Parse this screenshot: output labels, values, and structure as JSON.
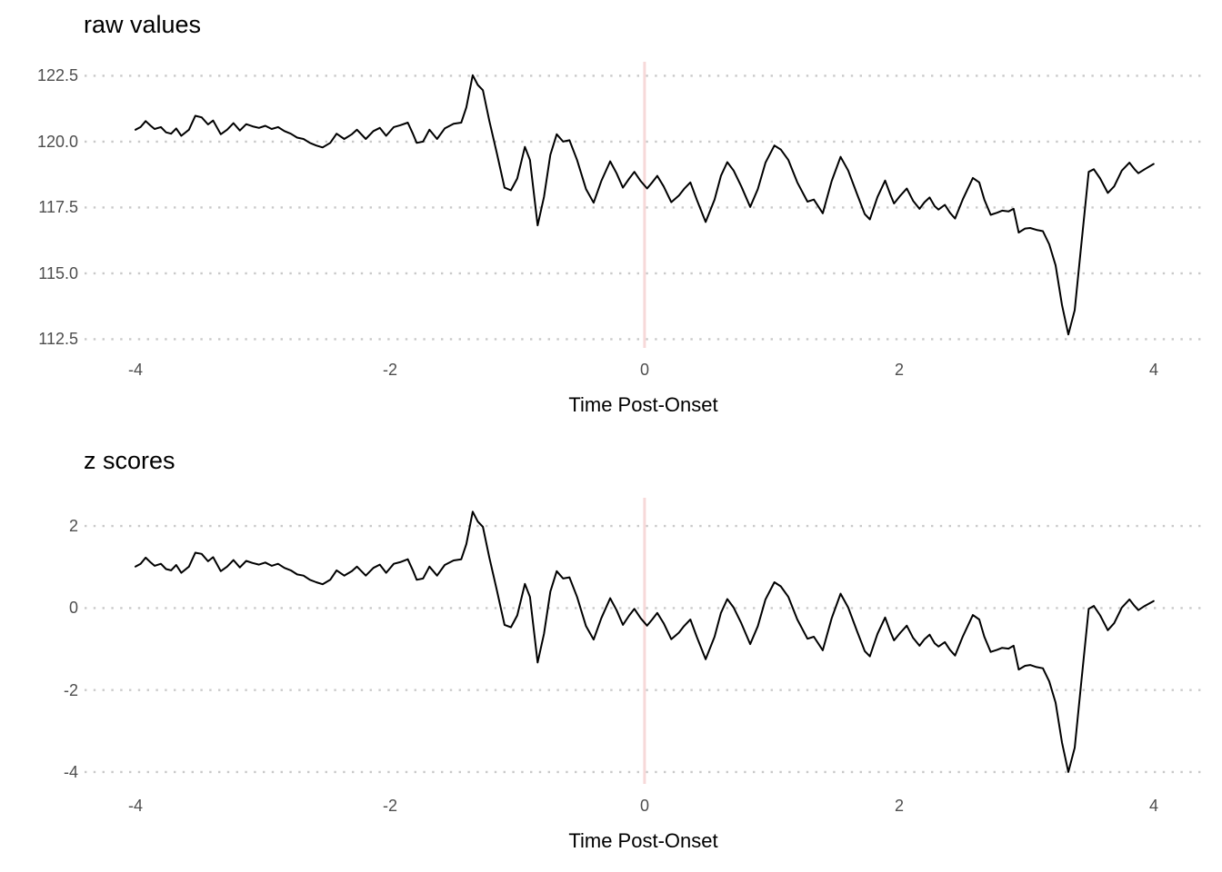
{
  "style": {
    "background": "#ffffff",
    "line_color": "#000000",
    "grid_color": "#c9c9c9",
    "vline_color": "#f7d9d9",
    "tick_label_color": "#4d4d4d",
    "text_color": "#000000"
  },
  "chart_data": [
    {
      "type": "line",
      "title": "raw values",
      "xlabel": "Time Post-Onset",
      "legend": "none",
      "grid": "dotted horizontal gridlines at y ticks",
      "vline_x": 0,
      "x_ticks": [
        -4,
        -2,
        0,
        2,
        4
      ],
      "x_tick_labels": [
        "-4",
        "-2",
        "0",
        "2",
        "4"
      ],
      "y_ticks": [
        122.5,
        120.0,
        117.5,
        115.0,
        112.5
      ],
      "y_tick_labels": [
        "122.5",
        "120.0",
        "117.5",
        "115.0",
        "112.5"
      ],
      "xlim": [
        -4.4,
        4.38
      ],
      "ylim": [
        112.17,
        123.03
      ],
      "x": [
        -4.0,
        -3.96,
        -3.92,
        -3.88,
        -3.85,
        -3.8,
        -3.76,
        -3.72,
        -3.68,
        -3.64,
        -3.58,
        -3.53,
        -3.48,
        -3.43,
        -3.39,
        -3.33,
        -3.28,
        -3.23,
        -3.18,
        -3.13,
        -3.08,
        -3.03,
        -2.98,
        -2.93,
        -2.88,
        -2.83,
        -2.78,
        -2.73,
        -2.68,
        -2.63,
        -2.58,
        -2.53,
        -2.47,
        -2.42,
        -2.36,
        -2.3,
        -2.26,
        -2.19,
        -2.13,
        -2.08,
        -2.03,
        -1.97,
        -1.92,
        -1.86,
        -1.82,
        -1.79,
        -1.74,
        -1.69,
        -1.63,
        -1.57,
        -1.5,
        -1.44,
        -1.4,
        -1.35,
        -1.31,
        -1.27,
        -1.22,
        -1.16,
        -1.1,
        -1.05,
        -1.0,
        -0.94,
        -0.9,
        -0.84,
        -0.79,
        -0.74,
        -0.69,
        -0.64,
        -0.59,
        -0.53,
        -0.46,
        -0.4,
        -0.34,
        -0.27,
        -0.22,
        -0.17,
        -0.12,
        -0.08,
        -0.03,
        0.02,
        0.06,
        0.1,
        0.15,
        0.21,
        0.27,
        0.31,
        0.36,
        0.41,
        0.48,
        0.55,
        0.6,
        0.65,
        0.7,
        0.76,
        0.83,
        0.89,
        0.95,
        1.02,
        1.07,
        1.13,
        1.2,
        1.28,
        1.33,
        1.4,
        1.47,
        1.54,
        1.6,
        1.67,
        1.73,
        1.77,
        1.83,
        1.89,
        1.93,
        1.96,
        2.01,
        2.06,
        2.11,
        2.16,
        2.2,
        2.24,
        2.28,
        2.31,
        2.36,
        2.4,
        2.44,
        2.5,
        2.58,
        2.63,
        2.67,
        2.72,
        2.77,
        2.81,
        2.86,
        2.9,
        2.94,
        2.99,
        3.03,
        3.08,
        3.13,
        3.18,
        3.23,
        3.28,
        3.33,
        3.38,
        3.43,
        3.49,
        3.53,
        3.58,
        3.64,
        3.69,
        3.75,
        3.81,
        3.85,
        3.88,
        3.93,
        4.0
      ],
      "values": [
        120.45,
        120.55,
        120.78,
        120.6,
        120.48,
        120.55,
        120.35,
        120.3,
        120.5,
        120.22,
        120.45,
        120.98,
        120.92,
        120.65,
        120.8,
        120.28,
        120.45,
        120.7,
        120.42,
        120.66,
        120.58,
        120.52,
        120.6,
        120.48,
        120.55,
        120.4,
        120.3,
        120.15,
        120.1,
        119.95,
        119.85,
        119.78,
        119.95,
        120.3,
        120.1,
        120.28,
        120.45,
        120.1,
        120.4,
        120.52,
        120.22,
        120.55,
        120.62,
        120.72,
        120.3,
        119.95,
        120.0,
        120.45,
        120.1,
        120.5,
        120.68,
        120.72,
        121.3,
        122.52,
        122.15,
        121.95,
        120.8,
        119.55,
        118.25,
        118.15,
        118.6,
        119.8,
        119.3,
        116.82,
        117.9,
        119.5,
        120.28,
        120.0,
        120.05,
        119.3,
        118.2,
        117.68,
        118.5,
        119.25,
        118.8,
        118.25,
        118.6,
        118.85,
        118.5,
        118.22,
        118.45,
        118.7,
        118.3,
        117.7,
        117.95,
        118.2,
        118.45,
        117.8,
        116.95,
        117.8,
        118.7,
        119.22,
        118.9,
        118.3,
        117.52,
        118.2,
        119.2,
        119.85,
        119.7,
        119.3,
        118.45,
        117.72,
        117.8,
        117.28,
        118.5,
        119.42,
        118.9,
        118.0,
        117.25,
        117.05,
        117.9,
        118.52,
        118.0,
        117.65,
        117.95,
        118.22,
        117.75,
        117.45,
        117.7,
        117.88,
        117.55,
        117.42,
        117.6,
        117.3,
        117.08,
        117.8,
        118.62,
        118.45,
        117.8,
        117.22,
        117.3,
        117.38,
        117.35,
        117.45,
        116.55,
        116.7,
        116.72,
        116.65,
        116.6,
        116.1,
        115.3,
        113.8,
        112.68,
        113.6,
        116.0,
        118.85,
        118.95,
        118.6,
        118.05,
        118.3,
        118.9,
        119.2,
        118.95,
        118.8,
        118.95,
        119.15
      ]
    },
    {
      "type": "line",
      "title": "z scores",
      "xlabel": "Time Post-Onset",
      "legend": "none",
      "grid": "dotted horizontal gridlines at y ticks",
      "vline_x": 0,
      "x_ticks": [
        -4,
        -2,
        0,
        2,
        4
      ],
      "x_tick_labels": [
        "-4",
        "-2",
        "0",
        "2",
        "4"
      ],
      "y_ticks": [
        2,
        0,
        -2,
        -4
      ],
      "y_tick_labels": [
        "2",
        "0",
        "-2",
        "-4"
      ],
      "xlim": [
        -4.4,
        4.38
      ],
      "ylim": [
        -4.29,
        2.69
      ],
      "x": [
        -4.0,
        -3.96,
        -3.92,
        -3.88,
        -3.85,
        -3.8,
        -3.76,
        -3.72,
        -3.68,
        -3.64,
        -3.58,
        -3.53,
        -3.48,
        -3.43,
        -3.39,
        -3.33,
        -3.28,
        -3.23,
        -3.18,
        -3.13,
        -3.08,
        -3.03,
        -2.98,
        -2.93,
        -2.88,
        -2.83,
        -2.78,
        -2.73,
        -2.68,
        -2.63,
        -2.58,
        -2.53,
        -2.47,
        -2.42,
        -2.36,
        -2.3,
        -2.26,
        -2.19,
        -2.13,
        -2.08,
        -2.03,
        -1.97,
        -1.92,
        -1.86,
        -1.82,
        -1.79,
        -1.74,
        -1.69,
        -1.63,
        -1.57,
        -1.5,
        -1.44,
        -1.4,
        -1.35,
        -1.31,
        -1.27,
        -1.22,
        -1.16,
        -1.1,
        -1.05,
        -1.0,
        -0.94,
        -0.9,
        -0.84,
        -0.79,
        -0.74,
        -0.69,
        -0.64,
        -0.59,
        -0.53,
        -0.46,
        -0.4,
        -0.34,
        -0.27,
        -0.22,
        -0.17,
        -0.12,
        -0.08,
        -0.03,
        0.02,
        0.06,
        0.1,
        0.15,
        0.21,
        0.27,
        0.31,
        0.36,
        0.41,
        0.48,
        0.55,
        0.6,
        0.65,
        0.7,
        0.76,
        0.83,
        0.89,
        0.95,
        1.02,
        1.07,
        1.13,
        1.2,
        1.28,
        1.33,
        1.4,
        1.47,
        1.54,
        1.6,
        1.67,
        1.73,
        1.77,
        1.83,
        1.89,
        1.93,
        1.96,
        2.01,
        2.06,
        2.11,
        2.16,
        2.2,
        2.24,
        2.28,
        2.31,
        2.36,
        2.4,
        2.44,
        2.5,
        2.58,
        2.63,
        2.67,
        2.72,
        2.77,
        2.81,
        2.86,
        2.9,
        2.94,
        2.99,
        3.03,
        3.08,
        3.13,
        3.18,
        3.23,
        3.28,
        3.33,
        3.38,
        3.43,
        3.49,
        3.53,
        3.58,
        3.64,
        3.69,
        3.75,
        3.81,
        3.85,
        3.88,
        3.93,
        4.0
      ],
      "values": [
        1.01,
        1.08,
        1.23,
        1.11,
        1.03,
        1.08,
        0.95,
        0.92,
        1.05,
        0.86,
        1.01,
        1.35,
        1.32,
        1.14,
        1.24,
        0.9,
        1.01,
        1.17,
        0.99,
        1.15,
        1.1,
        1.06,
        1.11,
        1.03,
        1.08,
        0.98,
        0.92,
        0.82,
        0.79,
        0.69,
        0.63,
        0.58,
        0.69,
        0.92,
        0.79,
        0.9,
        1.01,
        0.79,
        0.98,
        1.06,
        0.86,
        1.08,
        1.12,
        1.19,
        0.92,
        0.69,
        0.72,
        1.01,
        0.79,
        1.05,
        1.16,
        1.19,
        1.56,
        2.35,
        2.11,
        1.98,
        1.24,
        0.43,
        -0.41,
        -0.47,
        -0.18,
        0.59,
        0.27,
        -1.33,
        -0.63,
        0.4,
        0.9,
        0.72,
        0.75,
        0.27,
        -0.44,
        -0.77,
        -0.25,
        0.24,
        -0.05,
        -0.41,
        -0.18,
        -0.02,
        -0.25,
        -0.43,
        -0.28,
        -0.12,
        -0.37,
        -0.76,
        -0.6,
        -0.44,
        -0.28,
        -0.7,
        -1.25,
        -0.7,
        -0.12,
        0.22,
        0.01,
        -0.37,
        -0.88,
        -0.44,
        0.21,
        0.63,
        0.53,
        0.27,
        -0.28,
        -0.75,
        -0.7,
        -1.03,
        -0.25,
        0.35,
        0.01,
        -0.57,
        -1.05,
        -1.18,
        -0.63,
        -0.23,
        -0.57,
        -0.79,
        -0.6,
        -0.43,
        -0.73,
        -0.92,
        -0.76,
        -0.65,
        -0.86,
        -0.94,
        -0.83,
        -1.02,
        -1.16,
        -0.7,
        -0.17,
        -0.28,
        -0.7,
        -1.07,
        -1.02,
        -0.97,
        -0.99,
        -0.92,
        -1.5,
        -1.41,
        -1.39,
        -1.44,
        -1.47,
        -1.79,
        -2.31,
        -3.28,
        -4.0,
        -3.41,
        -1.86,
        -0.02,
        0.05,
        -0.18,
        -0.54,
        -0.37,
        0.01,
        0.21,
        0.05,
        -0.05,
        0.05,
        0.17
      ]
    }
  ]
}
